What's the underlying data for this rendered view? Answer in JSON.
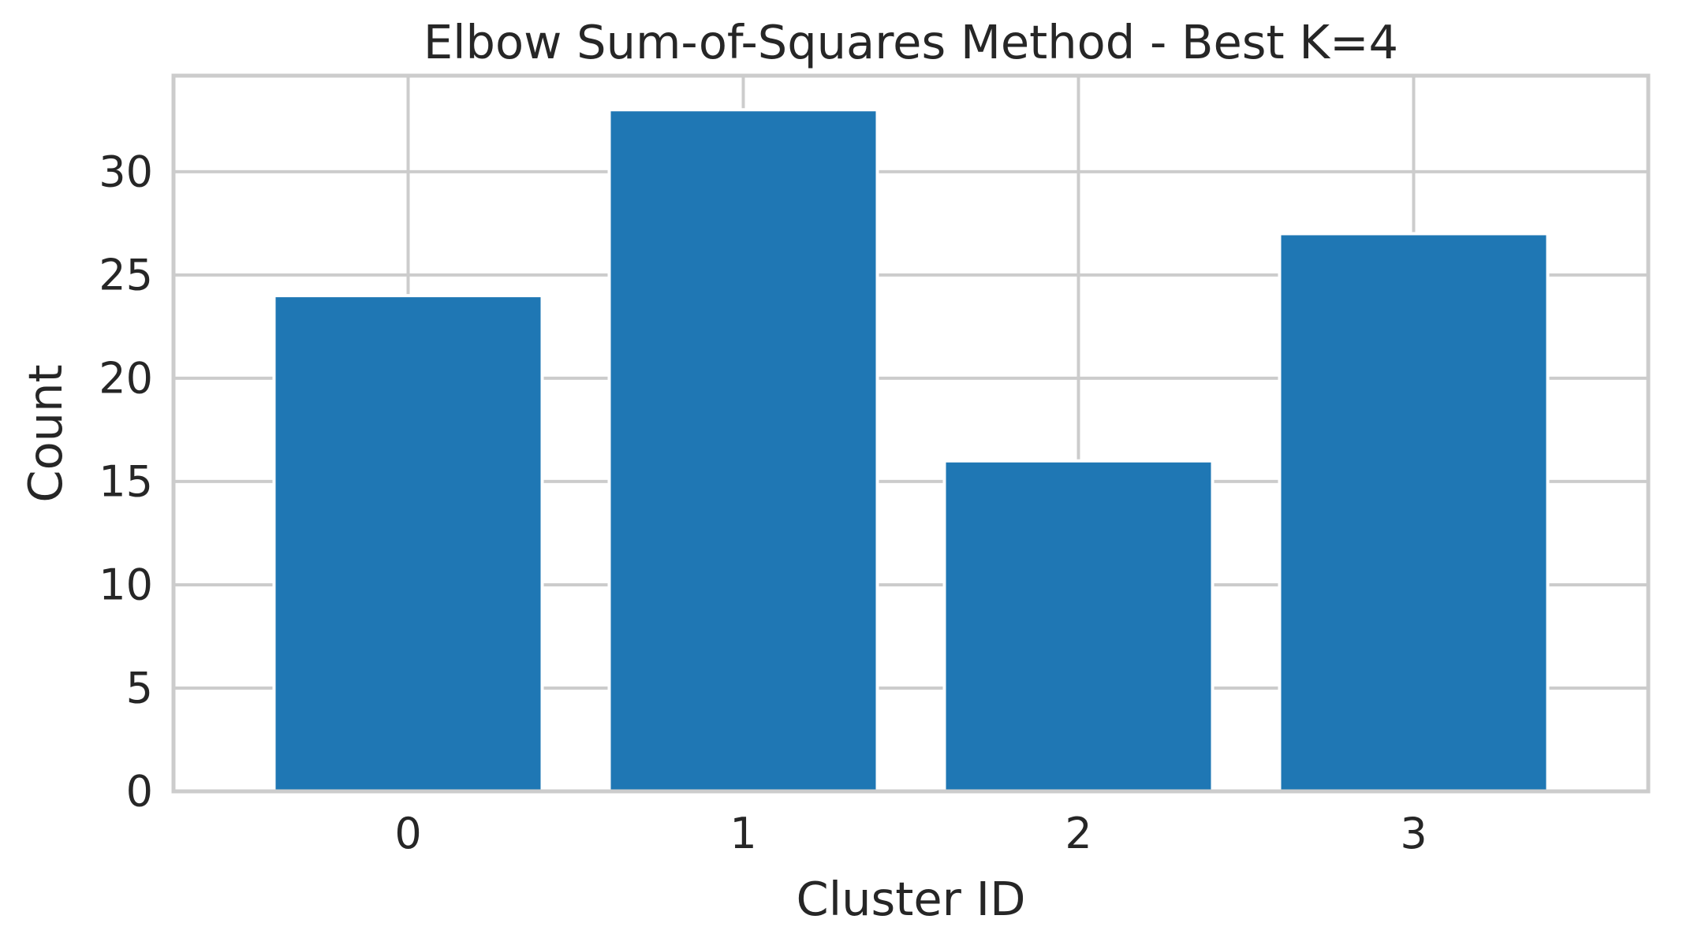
{
  "chart_data": {
    "type": "bar",
    "title": "Elbow Sum-of-Squares Method - Best K=4",
    "xlabel": "Cluster ID",
    "ylabel": "Count",
    "categories": [
      "0",
      "1",
      "2",
      "3"
    ],
    "values": [
      24,
      33,
      16,
      27
    ],
    "ylim": [
      0,
      34.65
    ],
    "yticks": [
      0,
      5,
      10,
      15,
      20,
      25,
      30
    ],
    "grid": true,
    "bar_color": "#1f77b4",
    "grid_color": "#cccccc",
    "axes_edge_color": "#cccccc"
  }
}
